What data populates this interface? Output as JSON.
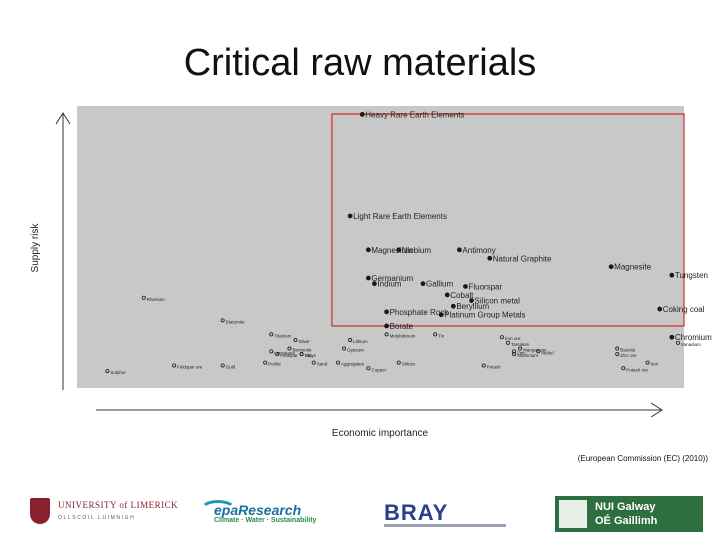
{
  "title": "Critical raw materials",
  "source": "(European Commission (EC) (2010))",
  "logos": {
    "ul_line1": "UNIVERSITY of LIMERICK",
    "ul_line2": "OLLSCOIL LUIMNIGH",
    "epa_line1": "epaResearch",
    "epa_line2": "Climate · Water · Sustainability",
    "bray": "BRAY",
    "nui_line1": "NUI Galway",
    "nui_line2": "OÉ Gaillimh"
  },
  "chart_data": {
    "type": "scatter",
    "title": "",
    "xlabel": "Economic importance",
    "ylabel": "Supply risk",
    "xlim": [
      0,
      10
    ],
    "ylim": [
      0,
      10
    ],
    "grid": false,
    "legend": "none",
    "colors": {
      "background": "#c8c8c8",
      "critical_region": "#d12a2a",
      "point": "#1a1a1a"
    },
    "critical_region": {
      "x_min": 4.2,
      "y_min": 2.2
    },
    "points": [
      {
        "label": "Heavy Rare Earth Elements",
        "x": 4.7,
        "y": 9.7,
        "size": "large"
      },
      {
        "label": "Light Rare Earth Elements",
        "x": 4.5,
        "y": 6.1,
        "size": "large"
      },
      {
        "label": "Niobium",
        "x": 5.3,
        "y": 4.9,
        "size": "large"
      },
      {
        "label": "Magnesium",
        "x": 4.8,
        "y": 4.9,
        "size": "large"
      },
      {
        "label": "Antimony",
        "x": 6.3,
        "y": 4.9,
        "size": "large"
      },
      {
        "label": "Natural Graphite",
        "x": 6.8,
        "y": 4.6,
        "size": "large"
      },
      {
        "label": "Magnesite",
        "x": 8.8,
        "y": 4.3,
        "size": "large"
      },
      {
        "label": "Tungsten",
        "x": 9.8,
        "y": 4.0,
        "size": "large"
      },
      {
        "label": "Germanium",
        "x": 4.8,
        "y": 3.9,
        "size": "large"
      },
      {
        "label": "Indium",
        "x": 4.9,
        "y": 3.7,
        "size": "large"
      },
      {
        "label": "Gallium",
        "x": 5.7,
        "y": 3.7,
        "size": "large"
      },
      {
        "label": "Cobalt",
        "x": 6.1,
        "y": 3.3,
        "size": "large"
      },
      {
        "label": "Fluorspar",
        "x": 6.4,
        "y": 3.6,
        "size": "large"
      },
      {
        "label": "Silicon metal",
        "x": 6.5,
        "y": 3.1,
        "size": "large"
      },
      {
        "label": "Beryllium",
        "x": 6.2,
        "y": 2.9,
        "size": "large"
      },
      {
        "label": "Phosphate Rock",
        "x": 5.1,
        "y": 2.7,
        "size": "large"
      },
      {
        "label": "Platinum Group Metals",
        "x": 6.0,
        "y": 2.6,
        "size": "large"
      },
      {
        "label": "Coking coal",
        "x": 9.6,
        "y": 2.8,
        "size": "large"
      },
      {
        "label": "Borate",
        "x": 5.1,
        "y": 2.2,
        "size": "large"
      },
      {
        "label": "Chromium",
        "x": 9.8,
        "y": 1.8,
        "size": "large"
      },
      {
        "label": "Rhenium",
        "x": 1.1,
        "y": 3.2,
        "size": "small"
      },
      {
        "label": "Diatomite",
        "x": 2.4,
        "y": 2.4,
        "size": "small"
      },
      {
        "label": "Titanium",
        "x": 3.2,
        "y": 1.9,
        "size": "small"
      },
      {
        "label": "Silver",
        "x": 3.6,
        "y": 1.7,
        "size": "small"
      },
      {
        "label": "Bentonite",
        "x": 3.5,
        "y": 1.4,
        "size": "small"
      },
      {
        "label": "Lithium",
        "x": 4.5,
        "y": 1.7,
        "size": "small"
      },
      {
        "label": "Gypsum",
        "x": 4.4,
        "y": 1.4,
        "size": "small"
      },
      {
        "label": "Molybdenum",
        "x": 5.1,
        "y": 1.9,
        "size": "small"
      },
      {
        "label": "Tin",
        "x": 5.9,
        "y": 1.9,
        "size": "small"
      },
      {
        "label": "Iron ore",
        "x": 7.0,
        "y": 1.8,
        "size": "small"
      },
      {
        "label": "Tantalum",
        "x": 7.1,
        "y": 1.6,
        "size": "small"
      },
      {
        "label": "Vanadium",
        "x": 9.9,
        "y": 1.6,
        "size": "small"
      },
      {
        "label": "Limestone",
        "x": 3.2,
        "y": 1.3,
        "size": "small"
      },
      {
        "label": "Talc",
        "x": 3.7,
        "y": 1.2,
        "size": "small"
      },
      {
        "label": "Feldspar",
        "x": 3.3,
        "y": 1.2,
        "size": "small"
      },
      {
        "label": "Clays",
        "x": 3.7,
        "y": 1.2,
        "size": "small"
      },
      {
        "label": "Manganese",
        "x": 7.3,
        "y": 1.4,
        "size": "small"
      },
      {
        "label": "Zinc",
        "x": 7.2,
        "y": 1.3,
        "size": "small"
      },
      {
        "label": "Nickel",
        "x": 7.6,
        "y": 1.3,
        "size": "small"
      },
      {
        "label": "Aluminium",
        "x": 7.2,
        "y": 1.2,
        "size": "small"
      },
      {
        "label": "Bauxite",
        "x": 8.9,
        "y": 1.4,
        "size": "small"
      },
      {
        "label": "Zinc ore",
        "x": 8.9,
        "y": 1.2,
        "size": "small"
      },
      {
        "label": "Perlite",
        "x": 3.1,
        "y": 0.9,
        "size": "small"
      },
      {
        "label": "Sand",
        "x": 3.9,
        "y": 0.9,
        "size": "small"
      },
      {
        "label": "Aggregates",
        "x": 4.3,
        "y": 0.9,
        "size": "small"
      },
      {
        "label": "Silicon",
        "x": 5.3,
        "y": 0.9,
        "size": "small"
      },
      {
        "label": "Copper",
        "x": 4.8,
        "y": 0.7,
        "size": "small"
      },
      {
        "label": "Potash",
        "x": 6.7,
        "y": 0.8,
        "size": "small"
      },
      {
        "label": "Iron",
        "x": 9.4,
        "y": 0.9,
        "size": "small"
      },
      {
        "label": "Potash ore",
        "x": 9.0,
        "y": 0.7,
        "size": "small"
      },
      {
        "label": "Feldspar ore",
        "x": 1.6,
        "y": 0.8,
        "size": "small"
      },
      {
        "label": "Gold",
        "x": 2.4,
        "y": 0.8,
        "size": "small"
      },
      {
        "label": "Sulphur",
        "x": 0.5,
        "y": 0.6,
        "size": "small"
      }
    ]
  }
}
